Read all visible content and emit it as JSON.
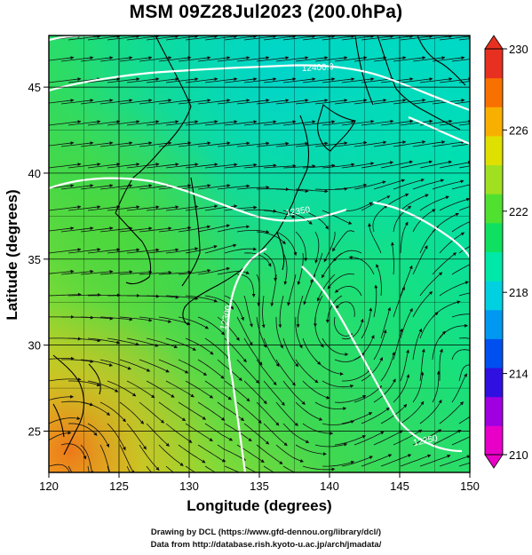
{
  "title": "MSM 09Z28Jul2023 (200.0hPa)",
  "axes": {
    "xlabel": "Longitude (degrees)",
    "ylabel": "Latitude  (degrees)",
    "x_ticks": [
      "120",
      "125",
      "130",
      "135",
      "140",
      "145",
      "150"
    ],
    "y_ticks": [
      "25",
      "30",
      "35",
      "40",
      "45"
    ]
  },
  "colorbar": {
    "ticks": [
      "210",
      "214",
      "218",
      "222",
      "226",
      "230"
    ],
    "min": 210,
    "max": 230,
    "colors": [
      "#e800c8",
      "#a000e0",
      "#3010e0",
      "#0050f0",
      "#0098f0",
      "#00d0e0",
      "#00e8a8",
      "#10e060",
      "#50e030",
      "#a0e020",
      "#e0e000",
      "#f8b000",
      "#f87000",
      "#e83020"
    ]
  },
  "contour_labels": [
    "12400.0",
    "12350",
    "12300",
    "12250"
  ],
  "credits": {
    "line1": "Drawing by DCL (https://www.gfd-dennou.org/library/dcl/)",
    "line2": "Data from http://database.rish.kyoto-u.ac.jp/arch/jmadata/"
  }
}
